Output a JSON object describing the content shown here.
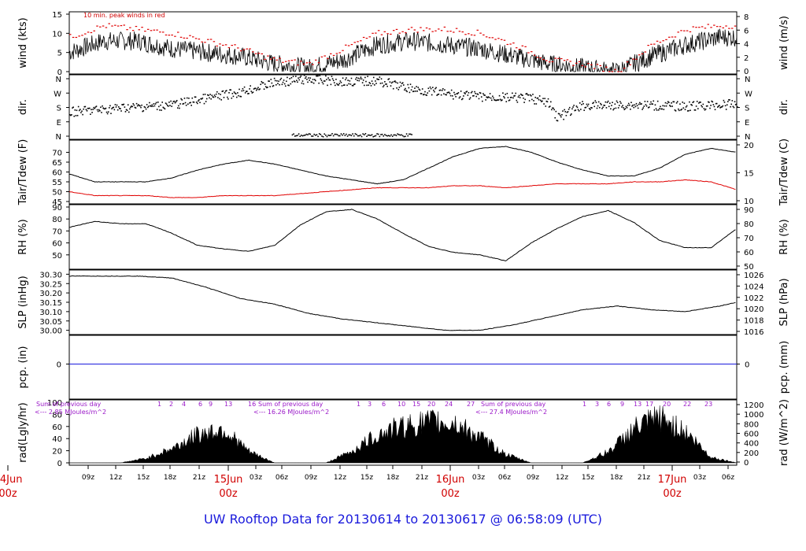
{
  "title": "UW Rooftop Data for 20130614  to  20130617 @ 06:58:09  (UTC)",
  "colors": {
    "black": "#000000",
    "red": "#e00000",
    "blue": "#1a1adc",
    "purple": "#9a18c8",
    "darkred": "#d00000"
  },
  "chart_data": [
    {
      "type": "line",
      "id": "wind",
      "ylabel": "wind (kts)",
      "ylabel_right": "wind (m/s)",
      "ylim": [
        0,
        15
      ],
      "yticks": [
        0,
        5,
        10,
        15
      ],
      "yticks_right": [
        0,
        2,
        4,
        6,
        8
      ],
      "annotation": "10 min. peak winds in red",
      "series": [
        {
          "name": "wind",
          "color": "#000000",
          "x": [
            0,
            4,
            8,
            12,
            16,
            20,
            24,
            28,
            32,
            36,
            40,
            44,
            48,
            52,
            56,
            60,
            64,
            68,
            72,
            76
          ],
          "y": [
            5,
            8,
            8,
            6,
            5,
            4,
            2,
            1,
            3,
            7,
            8,
            7,
            6,
            4,
            2,
            1,
            0,
            4,
            7,
            9
          ]
        },
        {
          "name": "peak",
          "color": "#e00000",
          "x": [
            0,
            4,
            8,
            12,
            16,
            20,
            24,
            28,
            32,
            36,
            40,
            44,
            48,
            52,
            56,
            60,
            64,
            68,
            72,
            76
          ],
          "y": [
            9,
            12,
            11,
            10,
            8,
            6,
            3,
            2,
            6,
            10,
            11,
            11,
            10,
            7,
            3,
            2,
            0,
            7,
            11,
            12
          ]
        }
      ]
    },
    {
      "type": "scatter",
      "id": "dir",
      "ylabel": "dir.",
      "ylabel_right": "dir.",
      "yticks": [
        "N",
        "W",
        "S",
        "E",
        "N"
      ],
      "ylim": [
        0,
        360
      ]
    },
    {
      "type": "line",
      "id": "temp",
      "ylabel": "Tair/Tdew (F)",
      "ylabel_right": "Tair/Tdew (C)",
      "ylim": [
        45,
        75
      ],
      "yticks": [
        45,
        50,
        55,
        60,
        65,
        70
      ],
      "yticks_right": [
        10,
        15,
        20
      ],
      "series": [
        {
          "name": "Tair",
          "color": "#000000",
          "x": [
            0,
            3,
            6,
            9,
            12,
            15,
            18,
            21,
            24,
            27,
            30,
            33,
            36,
            39,
            42,
            45,
            48,
            51,
            54,
            57,
            60,
            63,
            66,
            69,
            72,
            75,
            78
          ],
          "y": [
            59,
            55,
            55,
            55,
            57,
            61,
            64,
            66,
            64,
            61,
            58,
            56,
            54,
            56,
            62,
            68,
            72,
            73,
            70,
            65,
            61,
            58,
            58,
            62,
            69,
            72,
            70
          ]
        },
        {
          "name": "Tdew",
          "color": "#e00000",
          "x": [
            0,
            3,
            6,
            9,
            12,
            15,
            18,
            21,
            24,
            27,
            30,
            33,
            36,
            39,
            42,
            45,
            48,
            51,
            54,
            57,
            60,
            63,
            66,
            69,
            72,
            75,
            78
          ],
          "y": [
            50,
            48,
            48,
            48,
            47,
            47,
            48,
            48,
            48,
            49,
            50,
            51,
            52,
            52,
            52,
            53,
            53,
            52,
            53,
            54,
            54,
            54,
            55,
            55,
            56,
            55,
            51
          ]
        }
      ]
    },
    {
      "type": "line",
      "id": "rh",
      "ylabel": "RH (%)",
      "ylabel_right": "RH (%)",
      "ylim": [
        40,
        90
      ],
      "yticks": [
        50,
        60,
        70,
        80,
        90
      ],
      "yticks_right": [
        50,
        60,
        70,
        80,
        90
      ],
      "series": [
        {
          "name": "RH",
          "color": "#000000",
          "x": [
            0,
            3,
            6,
            9,
            12,
            15,
            18,
            21,
            24,
            27,
            30,
            33,
            36,
            39,
            42,
            45,
            48,
            51,
            54,
            57,
            60,
            63,
            66,
            69,
            72,
            75,
            78
          ],
          "y": [
            73,
            78,
            76,
            76,
            68,
            58,
            55,
            53,
            58,
            75,
            86,
            88,
            80,
            68,
            57,
            52,
            50,
            45,
            60,
            72,
            82,
            87,
            77,
            62,
            56,
            56,
            72
          ]
        }
      ]
    },
    {
      "type": "line",
      "id": "slp",
      "ylabel": "SLP (inHg)",
      "ylabel_right": "SLP (hPa)",
      "ylim": [
        29.99,
        30.31
      ],
      "yticks": [
        "30.00",
        "30.05",
        "30.10",
        "30.15",
        "30.20",
        "30.25",
        "30.30"
      ],
      "yticks_right": [
        "1016",
        "1018",
        "1020",
        "1022",
        "1024",
        "1026"
      ],
      "series": [
        {
          "name": "SLP",
          "color": "#000000",
          "x": [
            0,
            4,
            8,
            12,
            16,
            20,
            24,
            28,
            32,
            36,
            40,
            44,
            48,
            52,
            56,
            60,
            64,
            68,
            72,
            76,
            78
          ],
          "y": [
            30.29,
            30.29,
            30.29,
            30.28,
            30.23,
            30.17,
            30.14,
            30.09,
            30.06,
            30.04,
            30.02,
            30.0,
            30.0,
            30.03,
            30.07,
            30.11,
            30.13,
            30.11,
            30.1,
            30.13,
            30.15
          ]
        }
      ]
    },
    {
      "type": "line",
      "id": "pcp",
      "ylabel": "pcp. (in)",
      "ylabel_right": "pcp. (mm)",
      "yticks": [
        "0"
      ],
      "yticks_right": [
        "0"
      ],
      "series": [
        {
          "name": "pcp",
          "color": "#1a1adc",
          "x": [
            0,
            78
          ],
          "y": [
            0,
            0
          ]
        }
      ]
    },
    {
      "type": "area",
      "id": "rad",
      "ylabel": "rad(Lgly/hr)",
      "ylabel_right": "rad (W/m^2)",
      "ylim": [
        0,
        100
      ],
      "yticks": [
        0,
        20,
        40,
        60,
        80,
        100
      ],
      "yticks_right": [
        0,
        200,
        400,
        600,
        800,
        1000,
        1200
      ],
      "sums": [
        {
          "line1": "Sum of previous day",
          "line2": "<--- 2.85 MJoules/m^2"
        },
        {
          "line1": "Sum of previous day",
          "line2": "<--- 16.26 MJoules/m^2"
        },
        {
          "line1": "Sum of previous day",
          "line2": "<--- 27.4 MJoules/m^2"
        }
      ],
      "hour_labels": [
        [
          "1",
          "2",
          "4",
          "6",
          "9",
          "13",
          "16"
        ],
        [
          "1",
          "3",
          "6",
          "10",
          "15",
          "20",
          "24",
          "27"
        ],
        [
          "1",
          "3",
          "6",
          "9",
          "13",
          "17",
          "20",
          "22",
          "23"
        ]
      ],
      "series": [
        {
          "name": "rad",
          "color": "#000000",
          "x": [
            0,
            5,
            6,
            9,
            12,
            15,
            18,
            21,
            24,
            30,
            33,
            36,
            39,
            42,
            45,
            48,
            51,
            54,
            57,
            60,
            63,
            66,
            69,
            72,
            75,
            78
          ],
          "y": [
            0,
            0,
            0,
            8,
            25,
            50,
            60,
            20,
            0,
            0,
            20,
            50,
            65,
            72,
            70,
            45,
            15,
            0,
            0,
            0,
            20,
            60,
            80,
            55,
            10,
            0
          ]
        }
      ]
    }
  ],
  "time_axis": {
    "labels": [
      "09z",
      "12z",
      "15z",
      "18z",
      "21z",
      "03z",
      "06z",
      "09z",
      "12z",
      "15z",
      "18z",
      "21z",
      "03z",
      "06z",
      "09z",
      "12z",
      "15z",
      "18z",
      "21z",
      "03z",
      "06z"
    ],
    "day_labels": [
      {
        "date": "14Jun",
        "time": "00z"
      },
      {
        "date": "15Jun",
        "time": "00z"
      },
      {
        "date": "16Jun",
        "time": "00z"
      },
      {
        "date": "17Jun",
        "time": "00z"
      }
    ]
  }
}
